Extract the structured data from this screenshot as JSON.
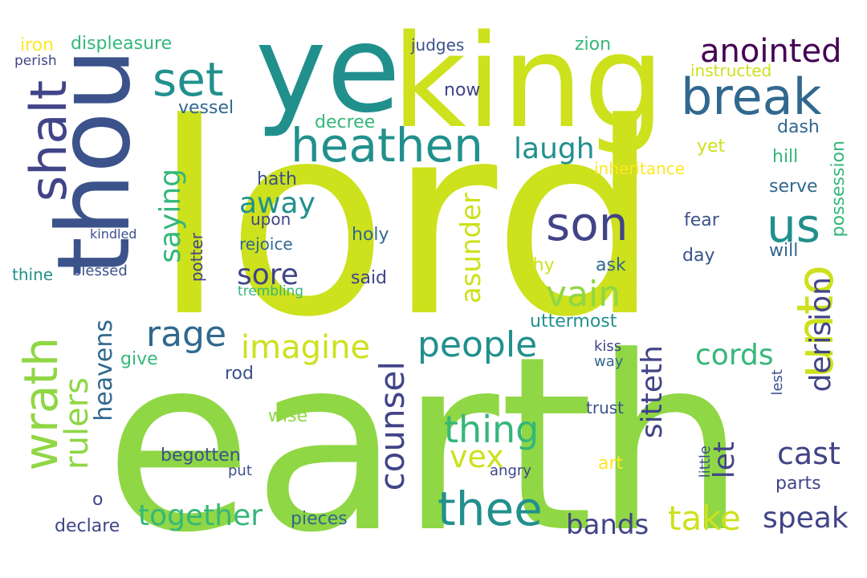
{
  "palette": {
    "lime": "#cde11d",
    "green": "#8fd744",
    "teal": "#21908d",
    "seagreen": "#35b779",
    "blue": "#3b528b",
    "indigo": "#414487",
    "purple": "#440154",
    "navy": "#31688e",
    "yellow": "#fde725"
  },
  "words": [
    "lord",
    "earth",
    "thou",
    "ye",
    "king",
    "heathen",
    "break",
    "set",
    "shalt",
    "son",
    "us",
    "unto",
    "anointed",
    "wrath",
    "thee",
    "rulers",
    "heavens",
    "counsel",
    "vain",
    "people",
    "imagine",
    "rage",
    "together",
    "take",
    "speak",
    "bands",
    "sitteth",
    "derision",
    "thing",
    "vex",
    "asunder",
    "cords",
    "cast",
    "saying",
    "let",
    "sore",
    "away",
    "laugh",
    "displeasure",
    "iron",
    "perish",
    "judges",
    "zion",
    "instructed",
    "now",
    "decree",
    "vessel",
    "hath",
    "upon",
    "rejoice",
    "holy",
    "thine",
    "blessed",
    "kindled",
    "potter",
    "trembling",
    "said",
    "thy",
    "ask",
    "day",
    "will",
    "possession",
    "serve",
    "hill",
    "dash",
    "yet",
    "inheritance",
    "fear",
    "uttermost",
    "give",
    "heavens",
    "rod",
    "kiss",
    "way",
    "lest",
    "trust",
    "wise",
    "begotten",
    "art",
    "put",
    "angry",
    "little",
    "o",
    "parts",
    "declare",
    "pieces"
  ]
}
